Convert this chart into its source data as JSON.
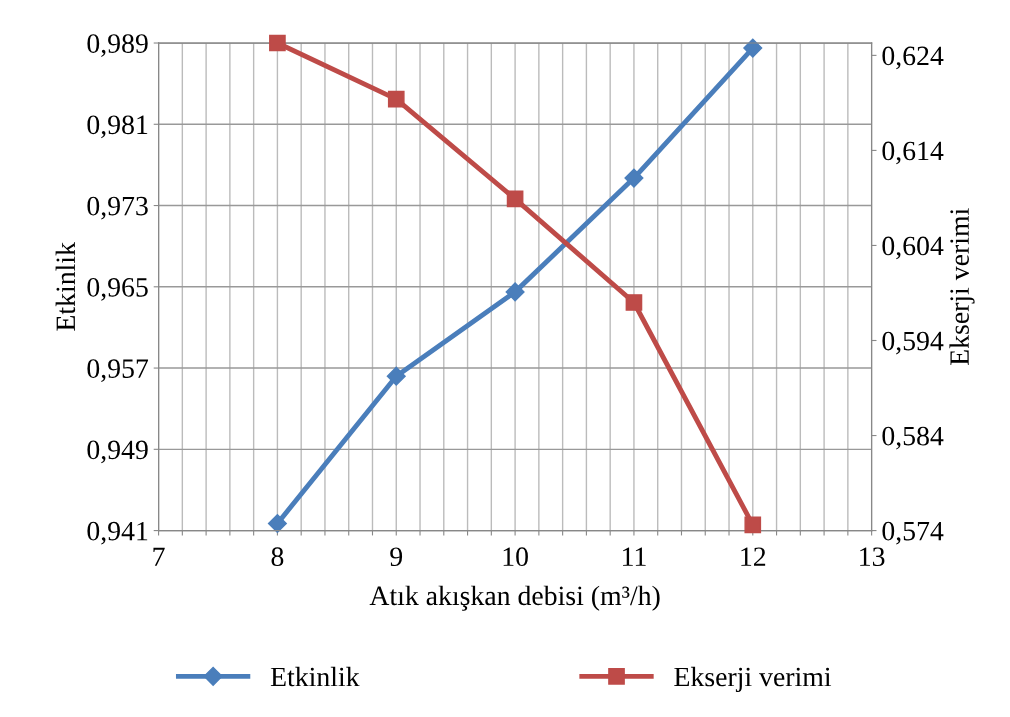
{
  "chart_data": {
    "type": "line",
    "xlabel": "Atık akışkan debisi (m³/h)",
    "ylabel": "Etkinlik",
    "y2label": "Ekserji verimi",
    "xlim": [
      7,
      13
    ],
    "xticks": [
      7,
      {
        "value": 7.2,
        "label": null
      },
      {
        "value": 7.4,
        "label": null
      },
      {
        "value": 7.6,
        "label": null
      },
      {
        "value": 7.8,
        "label": null
      },
      8,
      {
        "value": 8.2,
        "label": null
      },
      {
        "value": 8.4,
        "label": null
      },
      {
        "value": 8.6,
        "label": null
      },
      {
        "value": 8.8,
        "label": null
      },
      9,
      {
        "value": 9.2,
        "label": null
      },
      {
        "value": 9.4,
        "label": null
      },
      {
        "value": 9.6,
        "label": null
      },
      {
        "value": 9.8,
        "label": null
      },
      10,
      {
        "value": 10.2,
        "label": null
      },
      {
        "value": 10.4,
        "label": null
      },
      {
        "value": 10.6,
        "label": null
      },
      {
        "value": 10.8,
        "label": null
      },
      11,
      {
        "value": 11.2,
        "label": null
      },
      {
        "value": 11.4,
        "label": null
      },
      {
        "value": 11.6,
        "label": null
      },
      {
        "value": 11.8,
        "label": null
      },
      12,
      {
        "value": 12.2,
        "label": null
      },
      {
        "value": 12.4,
        "label": null
      },
      {
        "value": 12.6,
        "label": null
      },
      {
        "value": 12.8,
        "label": null
      },
      13
    ],
    "ylim": [
      0.941,
      0.989
    ],
    "yticks": [
      {
        "value": 0.941,
        "label": "0,941"
      },
      {
        "value": 0.949,
        "label": "0,949"
      },
      {
        "value": 0.957,
        "label": "0,957"
      },
      {
        "value": 0.965,
        "label": "0,965"
      },
      {
        "value": 0.973,
        "label": "0,973"
      },
      {
        "value": 0.981,
        "label": "0,981"
      },
      {
        "value": 0.989,
        "label": "0,989"
      }
    ],
    "y2lim": [
      0.574,
      0.6253
    ],
    "y2ticks": [
      {
        "value": 0.574,
        "label": "0,574"
      },
      {
        "value": 0.584,
        "label": "0,584"
      },
      {
        "value": 0.594,
        "label": "0,594"
      },
      {
        "value": 0.604,
        "label": "0,604"
      },
      {
        "value": 0.614,
        "label": "0,614"
      },
      {
        "value": 0.624,
        "label": "0,624"
      }
    ],
    "grid": true,
    "legend": "bottom",
    "line_style": "solid",
    "series": [
      {
        "name": "Etkinlik",
        "color": "#4a7ebb",
        "marker": "diamond",
        "x": [
          8,
          9,
          10,
          11,
          12
        ],
        "values": [
          0.9417,
          0.9562,
          0.9645,
          0.9757,
          0.9885
        ]
      },
      {
        "name": "Ekserji verimi",
        "color": "#be4b48",
        "marker": "square",
        "axis": "y2",
        "x": [
          8,
          9,
          10,
          11,
          12
        ],
        "values": [
          0.6253,
          0.6194,
          0.6089,
          0.598,
          0.5746
        ]
      }
    ]
  }
}
